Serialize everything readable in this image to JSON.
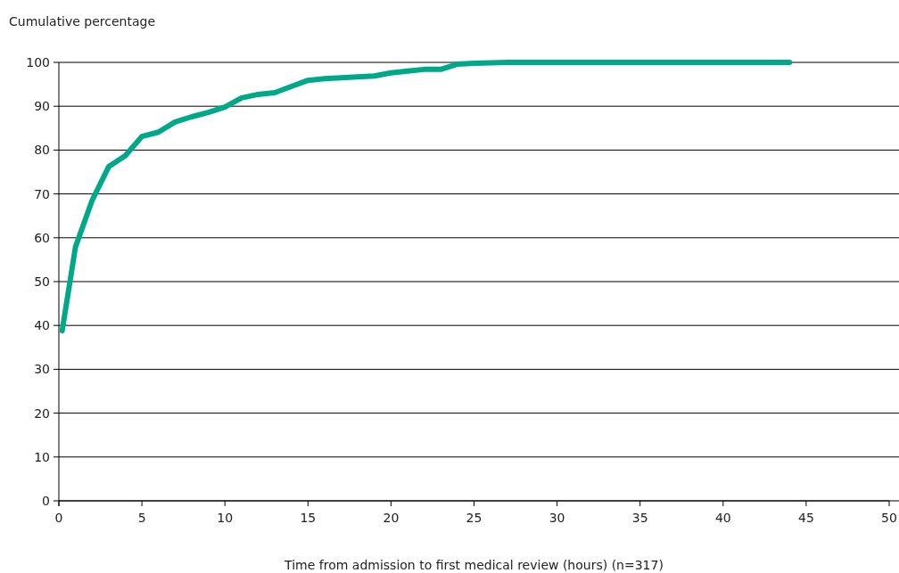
{
  "chart_data": {
    "type": "line",
    "ylabel": "Cumulative percentage",
    "xlabel": "Time from admission to first medical review (hours) (n=317)",
    "xlim": [
      0,
      50
    ],
    "xticks": [
      0,
      5,
      10,
      15,
      20,
      25,
      30,
      35,
      40,
      45,
      50
    ],
    "ylim": [
      0,
      100
    ],
    "yticks": [
      0,
      10,
      20,
      30,
      40,
      50,
      60,
      70,
      80,
      90,
      100
    ],
    "grid": "y",
    "series": [
      {
        "color": "#00a88a",
        "x": [
          0.2,
          1,
          2,
          3,
          4,
          5,
          6,
          7,
          8,
          9,
          10,
          11,
          12,
          13,
          14,
          15,
          16,
          17,
          18,
          19,
          20,
          21,
          22,
          23,
          24,
          25,
          27,
          44
        ],
        "values": [
          38.8,
          57.9,
          68.5,
          76.2,
          78.7,
          83.1,
          84.1,
          86.4,
          87.6,
          88.6,
          89.8,
          91.9,
          92.7,
          93.1,
          94.5,
          95.9,
          96.3,
          96.5,
          96.7,
          96.9,
          97.6,
          98.0,
          98.4,
          98.4,
          99.6,
          99.8,
          100,
          100
        ]
      }
    ]
  }
}
